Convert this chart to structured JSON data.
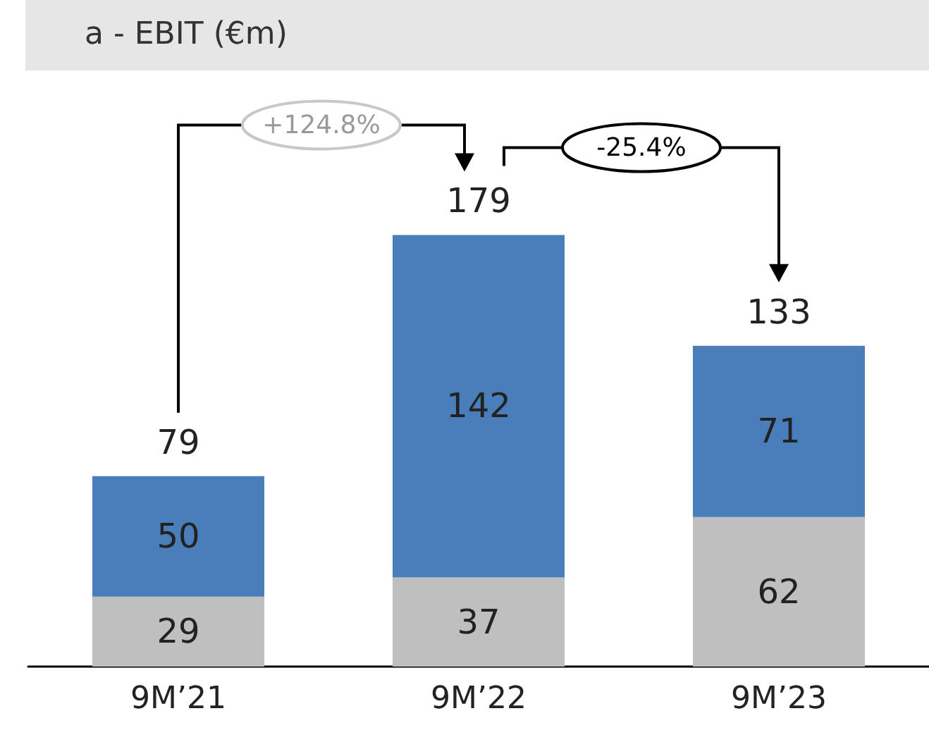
{
  "chart_data": {
    "type": "bar",
    "title": "a - EBIT (€m)",
    "categories": [
      "9M’21",
      "9M’22",
      "9M’23"
    ],
    "stacked": true,
    "data_labels": true,
    "series": [
      {
        "color": "#bfbfbf",
        "values": [
          29,
          37,
          62
        ]
      },
      {
        "color": "#4a7ebb",
        "values": [
          50,
          142,
          71
        ]
      }
    ],
    "totals": [
      "79",
      "179",
      "133"
    ],
    "annotations": [
      "+124.8%",
      "-25.4%"
    ]
  }
}
